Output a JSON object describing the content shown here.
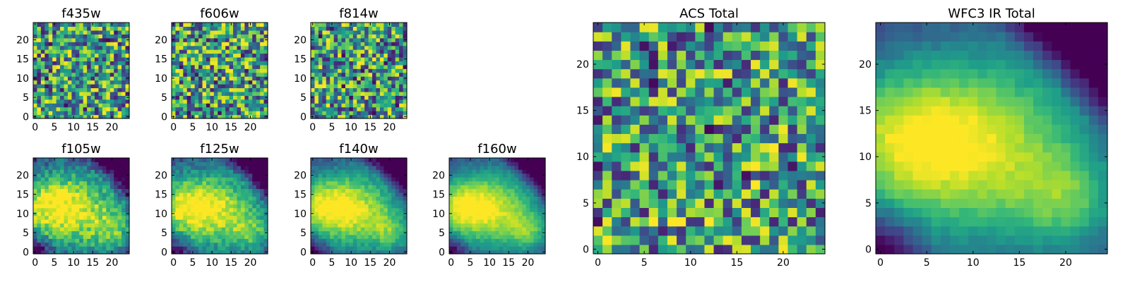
{
  "chart_data": [
    {
      "id": "f435w",
      "title": "f435w",
      "type": "heatmap",
      "colormap": "viridis",
      "grid_size": 25,
      "xlim": [
        0,
        25
      ],
      "ylim": [
        0,
        25
      ],
      "xticks": [
        "0",
        "5",
        "10",
        "15",
        "20"
      ],
      "yticks": [
        "0",
        "5",
        "10",
        "15",
        "20"
      ],
      "pattern": "noise",
      "seed": 11
    },
    {
      "id": "f606w",
      "title": "f606w",
      "type": "heatmap",
      "colormap": "viridis",
      "grid_size": 25,
      "xlim": [
        0,
        25
      ],
      "ylim": [
        0,
        25
      ],
      "xticks": [
        "0",
        "5",
        "10",
        "15",
        "20"
      ],
      "yticks": [
        "0",
        "5",
        "10",
        "15",
        "20"
      ],
      "pattern": "noise",
      "seed": 23
    },
    {
      "id": "f814w",
      "title": "f814w",
      "type": "heatmap",
      "colormap": "viridis",
      "grid_size": 25,
      "xlim": [
        0,
        25
      ],
      "ylim": [
        0,
        25
      ],
      "xticks": [
        "0",
        "5",
        "10",
        "15",
        "20"
      ],
      "yticks": [
        "0",
        "5",
        "10",
        "15",
        "20"
      ],
      "pattern": "noise",
      "seed": 37
    },
    {
      "id": "f105w",
      "title": "f105w",
      "type": "heatmap",
      "colormap": "viridis",
      "grid_size": 25,
      "xlim": [
        0,
        25
      ],
      "ylim": [
        0,
        25
      ],
      "xticks": [
        "0",
        "5",
        "10",
        "15",
        "20"
      ],
      "yticks": [
        "0",
        "5",
        "10",
        "15",
        "20"
      ],
      "pattern": "galaxy",
      "noise": 0.16,
      "seed": 41
    },
    {
      "id": "f125w",
      "title": "f125w",
      "type": "heatmap",
      "colormap": "viridis",
      "grid_size": 25,
      "xlim": [
        0,
        25
      ],
      "ylim": [
        0,
        25
      ],
      "xticks": [
        "0",
        "5",
        "10",
        "15",
        "20"
      ],
      "yticks": [
        "0",
        "5",
        "10",
        "15",
        "20"
      ],
      "pattern": "galaxy",
      "noise": 0.12,
      "seed": 53
    },
    {
      "id": "f140w",
      "title": "f140w",
      "type": "heatmap",
      "colormap": "viridis",
      "grid_size": 25,
      "xlim": [
        0,
        25
      ],
      "ylim": [
        0,
        25
      ],
      "xticks": [
        "0",
        "5",
        "10",
        "15",
        "20"
      ],
      "yticks": [
        "0",
        "5",
        "10",
        "15",
        "20"
      ],
      "pattern": "galaxy",
      "noise": 0.08,
      "seed": 67
    },
    {
      "id": "f160w",
      "title": "f160w",
      "type": "heatmap",
      "colormap": "viridis",
      "grid_size": 25,
      "xlim": [
        0,
        25
      ],
      "ylim": [
        0,
        25
      ],
      "xticks": [
        "0",
        "5",
        "10",
        "15",
        "20"
      ],
      "yticks": [
        "0",
        "5",
        "10",
        "15",
        "20"
      ],
      "pattern": "galaxy",
      "noise": 0.06,
      "seed": 79
    },
    {
      "id": "acs_total",
      "title": "ACS Total",
      "type": "heatmap",
      "colormap": "viridis",
      "grid_size": 25,
      "xlim": [
        0,
        25
      ],
      "ylim": [
        0,
        25
      ],
      "xticks": [
        "0",
        "5",
        "10",
        "15",
        "20"
      ],
      "yticks": [
        "0",
        "5",
        "10",
        "15",
        "20"
      ],
      "pattern": "noise",
      "seed": 97
    },
    {
      "id": "wfc3_ir_total",
      "title": "WFC3 IR Total",
      "type": "heatmap",
      "colormap": "viridis",
      "grid_size": 25,
      "xlim": [
        0,
        25
      ],
      "ylim": [
        0,
        25
      ],
      "xticks": [
        "0",
        "5",
        "10",
        "15",
        "20"
      ],
      "yticks": [
        "0",
        "5",
        "10",
        "15",
        "20"
      ],
      "pattern": "galaxy",
      "noise": 0.04,
      "seed": 113
    }
  ]
}
